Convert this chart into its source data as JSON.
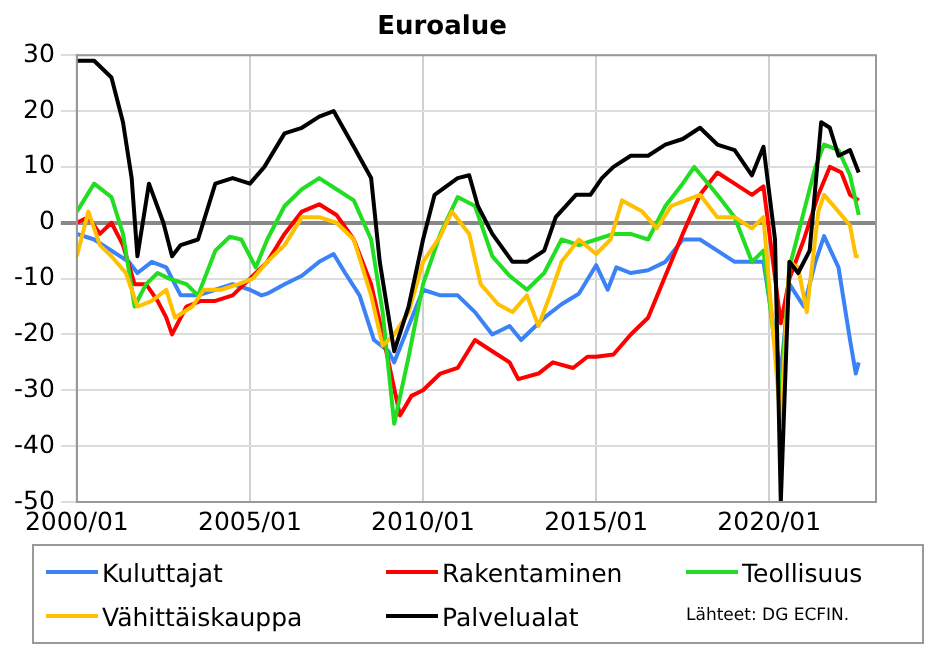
{
  "chart_data": {
    "type": "line",
    "title": "Euroalue",
    "xlim": [
      "2000-01",
      "2023-02"
    ],
    "xticks": [
      {
        "value": "2000-01",
        "label": "2000/01"
      },
      {
        "value": "2005-01",
        "label": "2005/01"
      },
      {
        "value": "2010-01",
        "label": "2010/01"
      },
      {
        "value": "2015-01",
        "label": "2015/01"
      },
      {
        "value": "2020-01",
        "label": "2020/01"
      }
    ],
    "ylim": [
      -50,
      30
    ],
    "yticks": [
      -50,
      -40,
      -30,
      -20,
      -10,
      0,
      10,
      20,
      30
    ],
    "grid": true,
    "legend": "bottom",
    "line_style": "solid",
    "marker": "none",
    "annotations": [
      "Lähteet: DG ECFIN."
    ],
    "series": [
      {
        "name": "Kuluttajat",
        "color": "#3b82f6",
        "x": [
          "2000-01",
          "2000-07",
          "2001-01",
          "2001-07",
          "2001-10",
          "2002-03",
          "2002-08",
          "2003-01",
          "2003-07",
          "2004-01",
          "2004-07",
          "2005-01",
          "2005-05",
          "2005-07",
          "2006-01",
          "2006-07",
          "2007-01",
          "2007-06",
          "2007-10",
          "2008-03",
          "2008-08",
          "2009-01",
          "2009-03",
          "2009-08",
          "2010-01",
          "2010-07",
          "2011-01",
          "2011-07",
          "2012-01",
          "2012-07",
          "2012-11",
          "2013-07",
          "2014-01",
          "2014-07",
          "2015-01",
          "2015-05",
          "2015-08",
          "2016-01",
          "2016-07",
          "2017-01",
          "2017-07",
          "2018-01",
          "2018-07",
          "2019-01",
          "2019-07",
          "2019-11",
          "2020-05",
          "2020-08",
          "2021-01",
          "2021-05",
          "2021-08",
          "2022-01",
          "2022-05",
          "2022-07",
          "2022-08"
        ],
        "values": [
          -2,
          -3,
          -5,
          -7,
          -9,
          -7,
          -8,
          -13,
          -13,
          -12,
          -11,
          -12,
          -13,
          -12.7,
          -11,
          -9.5,
          -7,
          -5.6,
          -9,
          -13,
          -21,
          -23,
          -25,
          -18.5,
          -12,
          -13,
          -13,
          -16,
          -20,
          -18.5,
          -21,
          -17,
          -14.6,
          -12.7,
          -7.6,
          -12,
          -8,
          -9,
          -8.5,
          -7,
          -3,
          -3,
          -5,
          -7,
          -7,
          -7,
          -27,
          -11,
          -15,
          -7,
          -2.4,
          -8,
          -21,
          -27,
          -25
        ]
      },
      {
        "name": "Rakentaminen",
        "color": "#ff0000",
        "x": [
          "2000-01",
          "2000-05",
          "2000-09",
          "2001-01",
          "2001-05",
          "2001-09",
          "2002-01",
          "2002-05",
          "2002-08",
          "2002-10",
          "2003-03",
          "2003-08",
          "2004-01",
          "2004-07",
          "2005-01",
          "2005-07",
          "2006-01",
          "2006-07",
          "2007-01",
          "2007-07",
          "2008-01",
          "2008-07",
          "2008-11",
          "2009-05",
          "2009-09",
          "2010-01",
          "2010-07",
          "2011-01",
          "2011-07",
          "2012-01",
          "2012-07",
          "2012-10",
          "2013-05",
          "2013-10",
          "2014-05",
          "2014-10",
          "2015-01",
          "2015-07",
          "2016-01",
          "2016-07",
          "2017-01",
          "2017-07",
          "2018-01",
          "2018-07",
          "2019-01",
          "2019-07",
          "2019-11",
          "2020-05",
          "2020-08",
          "2021-01",
          "2021-06",
          "2021-10",
          "2022-02",
          "2022-05",
          "2022-08"
        ],
        "values": [
          0,
          1,
          -2,
          0,
          -4,
          -11,
          -11,
          -14,
          -17,
          -20,
          -15,
          -14,
          -14,
          -13,
          -10,
          -7,
          -2,
          2,
          3.3,
          1.4,
          -3,
          -11,
          -20,
          -34.5,
          -31,
          -30,
          -27,
          -26,
          -21,
          -23,
          -25,
          -28,
          -27,
          -25,
          -26,
          -24,
          -24,
          -23.6,
          -20,
          -17,
          -9.5,
          -2,
          5,
          9,
          7,
          5,
          6.5,
          -18,
          -10,
          -3,
          5,
          10,
          9,
          5,
          4
        ]
      },
      {
        "name": "Teollisuus",
        "color": "#22dd22",
        "x": [
          "2000-01",
          "2000-07",
          "2001-01",
          "2001-05",
          "2001-09",
          "2002-01",
          "2002-05",
          "2002-09",
          "2003-03",
          "2003-07",
          "2004-01",
          "2004-06",
          "2004-10",
          "2005-03",
          "2005-07",
          "2006-01",
          "2006-07",
          "2007-01",
          "2007-07",
          "2008-01",
          "2008-07",
          "2008-11",
          "2009-03",
          "2009-08",
          "2010-01",
          "2010-07",
          "2011-01",
          "2011-07",
          "2012-01",
          "2012-07",
          "2013-01",
          "2013-07",
          "2014-01",
          "2014-07",
          "2015-01",
          "2015-07",
          "2016-01",
          "2016-07",
          "2017-01",
          "2017-07",
          "2017-11",
          "2018-07",
          "2019-01",
          "2019-07",
          "2019-11",
          "2020-05",
          "2020-08",
          "2021-01",
          "2021-05",
          "2021-08",
          "2022-01",
          "2022-05",
          "2022-08"
        ],
        "values": [
          2,
          7,
          4.6,
          -2,
          -15,
          -11,
          -9,
          -10,
          -11,
          -13,
          -5,
          -2.5,
          -3,
          -8,
          -3,
          3,
          6,
          8,
          6,
          4,
          -3,
          -16,
          -36,
          -24,
          -11,
          -2,
          4.6,
          3,
          -6,
          -9.5,
          -12,
          -9,
          -3,
          -4,
          -3,
          -2,
          -2,
          -3,
          3,
          7,
          10,
          5,
          1,
          -7,
          -5,
          -31,
          -8,
          2,
          10,
          14,
          13,
          8.5,
          1.4
        ]
      },
      {
        "name": "Vähittäiskauppa",
        "color": "#ffc000",
        "x": [
          "2000-01",
          "2000-05",
          "2000-09",
          "2001-01",
          "2001-06",
          "2001-10",
          "2002-03",
          "2002-08",
          "2002-11",
          "2003-05",
          "2003-09",
          "2004-03",
          "2004-09",
          "2005-02",
          "2005-07",
          "2006-01",
          "2006-07",
          "2007-01",
          "2007-07",
          "2008-01",
          "2008-07",
          "2008-11",
          "2009-03",
          "2009-08",
          "2010-01",
          "2010-07",
          "2010-11",
          "2011-05",
          "2011-09",
          "2012-03",
          "2012-08",
          "2013-01",
          "2013-05",
          "2013-09",
          "2014-01",
          "2014-07",
          "2015-01",
          "2015-06",
          "2015-10",
          "2016-05",
          "2016-10",
          "2017-03",
          "2017-08",
          "2018-01",
          "2018-07",
          "2019-01",
          "2019-07",
          "2019-11",
          "2020-05",
          "2020-08",
          "2020-11",
          "2021-02",
          "2021-06",
          "2021-08",
          "2022-01",
          "2022-05",
          "2022-07",
          "2022-08"
        ],
        "values": [
          -6,
          2,
          -4,
          -6,
          -9,
          -15,
          -14,
          -12,
          -17,
          -15,
          -12,
          -12,
          -11,
          -10,
          -7,
          -4,
          1,
          1,
          0,
          -3,
          -13,
          -22,
          -20,
          -16,
          -7,
          -2.4,
          2,
          -2,
          -11,
          -14.6,
          -16,
          -13,
          -18.5,
          -13,
          -7,
          -3,
          -5.6,
          -3,
          4,
          2,
          -1,
          3,
          4,
          5,
          1,
          1,
          -1,
          1,
          -36,
          -7,
          -8,
          -16,
          2,
          5,
          2,
          -0.5,
          -6,
          -6
        ]
      },
      {
        "name": "Palvelualat",
        "color": "#000000",
        "x": [
          "2000-01",
          "2000-07",
          "2001-01",
          "2001-05",
          "2001-08",
          "2001-10",
          "2002-02",
          "2002-07",
          "2002-10",
          "2003-01",
          "2003-07",
          "2004-01",
          "2004-07",
          "2005-01",
          "2005-06",
          "2006-01",
          "2006-07",
          "2007-01",
          "2007-06",
          "2008-01",
          "2008-07",
          "2008-10",
          "2009-03",
          "2009-08",
          "2010-01",
          "2010-05",
          "2011-01",
          "2011-05",
          "2011-08",
          "2012-01",
          "2012-08",
          "2013-01",
          "2013-07",
          "2013-11",
          "2014-06",
          "2014-11",
          "2015-03",
          "2015-07",
          "2016-01",
          "2016-07",
          "2017-01",
          "2017-07",
          "2018-01",
          "2018-07",
          "2019-01",
          "2019-07",
          "2019-11",
          "2020-03",
          "2020-05",
          "2020-08",
          "2020-11",
          "2021-03",
          "2021-07",
          "2021-10",
          "2022-01",
          "2022-05",
          "2022-08"
        ],
        "values": [
          29,
          29,
          26,
          18,
          8,
          -6,
          7,
          0,
          -6,
          -4,
          -3,
          7,
          8,
          7,
          10,
          16,
          17,
          19,
          20,
          13.6,
          8,
          -7,
          -23,
          -15,
          -3,
          5,
          8,
          8.5,
          3,
          -2,
          -7,
          -7,
          -5,
          1,
          5,
          5,
          8,
          10,
          12,
          12,
          14,
          15,
          17,
          14,
          13,
          8.5,
          13.6,
          -3,
          -50,
          -7,
          -9,
          -5,
          18,
          17,
          12,
          13,
          9
        ]
      }
    ]
  }
}
